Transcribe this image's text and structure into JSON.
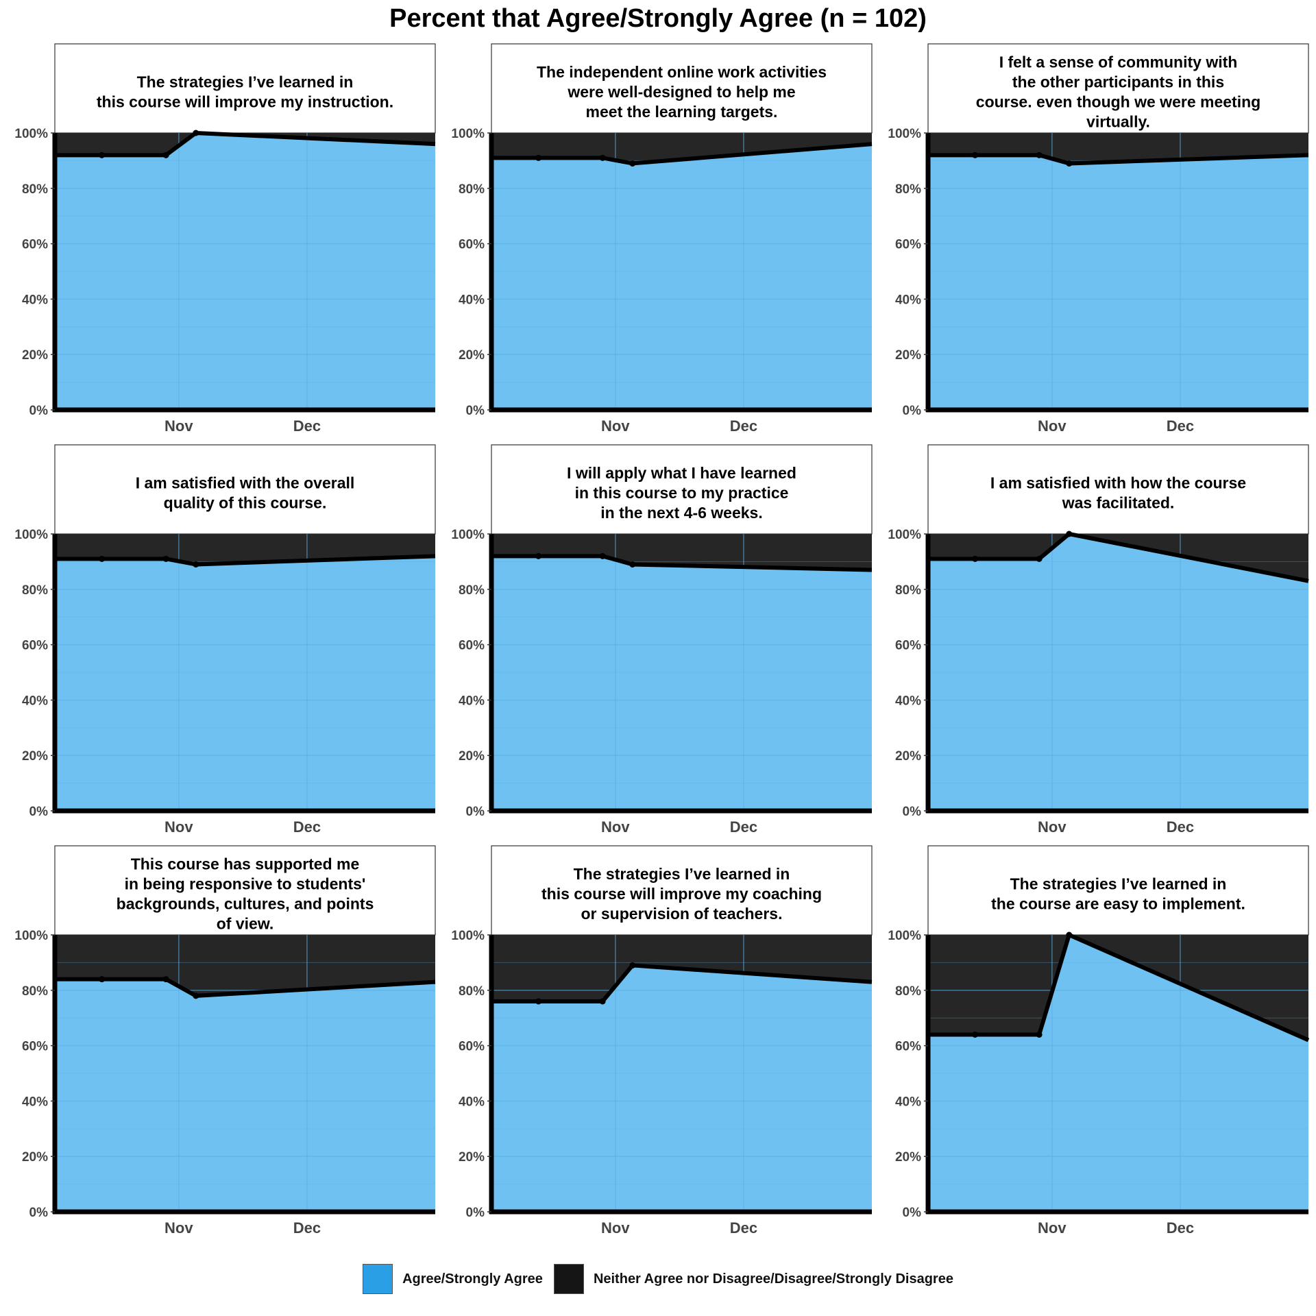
{
  "title": "Percent that Agree/Strongly Agree (n = 102)",
  "colors": {
    "agree": "#6fc1f2",
    "disagree": "#262626",
    "line": "#000000",
    "grid": "#5aaee6"
  },
  "legend": [
    {
      "label": "Agree/Strongly Agree",
      "color": "#2b9fe6"
    },
    {
      "label": "Neither Agree nor Disagree/Disagree/Strongly Disagree",
      "color": "#151515"
    }
  ],
  "chart_data": [
    {
      "type": "area",
      "title": "The strategies I’ve learned in\nthis course will improve my instruction.",
      "x": [
        "2020-10-14",
        "2020-10-29",
        "2020-11-05",
        "2020-12-31"
      ],
      "series": [
        {
          "name": "Agree/Strongly Agree",
          "values": [
            92,
            92,
            100,
            96
          ]
        }
      ],
      "xticks": [
        "Nov",
        "Dec"
      ],
      "yticks": [
        "0%",
        "20%",
        "40%",
        "60%",
        "80%",
        "100%"
      ],
      "ylim": [
        0,
        100
      ]
    },
    {
      "type": "area",
      "title": "The independent online work activities\nwere well-designed to help me\nmeet the learning targets.",
      "x": [
        "2020-10-14",
        "2020-10-29",
        "2020-11-05",
        "2020-12-31"
      ],
      "series": [
        {
          "name": "Agree/Strongly Agree",
          "values": [
            91,
            91,
            89,
            96
          ]
        }
      ],
      "xticks": [
        "Nov",
        "Dec"
      ],
      "yticks": [
        "0%",
        "20%",
        "40%",
        "60%",
        "80%",
        "100%"
      ],
      "ylim": [
        0,
        100
      ]
    },
    {
      "type": "area",
      "title": "I felt a sense of community with\nthe other participants in this\ncourse. even though we were meeting\nvirtually.",
      "x": [
        "2020-10-14",
        "2020-10-29",
        "2020-11-05",
        "2020-12-31"
      ],
      "series": [
        {
          "name": "Agree/Strongly Agree",
          "values": [
            92,
            92,
            89,
            92
          ]
        }
      ],
      "xticks": [
        "Nov",
        "Dec"
      ],
      "yticks": [
        "0%",
        "20%",
        "40%",
        "60%",
        "80%",
        "100%"
      ],
      "ylim": [
        0,
        100
      ]
    },
    {
      "type": "area",
      "title": "I am satisfied with the overall\nquality of this course.",
      "x": [
        "2020-10-14",
        "2020-10-29",
        "2020-11-05",
        "2020-12-31"
      ],
      "series": [
        {
          "name": "Agree/Strongly Agree",
          "values": [
            91,
            91,
            89,
            92
          ]
        }
      ],
      "xticks": [
        "Nov",
        "Dec"
      ],
      "yticks": [
        "0%",
        "20%",
        "40%",
        "60%",
        "80%",
        "100%"
      ],
      "ylim": [
        0,
        100
      ]
    },
    {
      "type": "area",
      "title": "I will apply what I have learned\nin this course to my practice\nin the next 4-6 weeks.",
      "x": [
        "2020-10-14",
        "2020-10-29",
        "2020-11-05",
        "2020-12-31"
      ],
      "series": [
        {
          "name": "Agree/Strongly Agree",
          "values": [
            92,
            92,
            89,
            87
          ]
        }
      ],
      "xticks": [
        "Nov",
        "Dec"
      ],
      "yticks": [
        "0%",
        "20%",
        "40%",
        "60%",
        "80%",
        "100%"
      ],
      "ylim": [
        0,
        100
      ]
    },
    {
      "type": "area",
      "title": "I am satisfied with how the course\nwas facilitated.",
      "x": [
        "2020-10-14",
        "2020-10-29",
        "2020-11-05",
        "2020-12-31"
      ],
      "series": [
        {
          "name": "Agree/Strongly Agree",
          "values": [
            91,
            91,
            100,
            83
          ]
        }
      ],
      "xticks": [
        "Nov",
        "Dec"
      ],
      "yticks": [
        "0%",
        "20%",
        "40%",
        "60%",
        "80%",
        "100%"
      ],
      "ylim": [
        0,
        100
      ]
    },
    {
      "type": "area",
      "title": "This course has supported me\nin being responsive to students'\nbackgrounds, cultures, and points\nof view.",
      "x": [
        "2020-10-14",
        "2020-10-29",
        "2020-11-05",
        "2020-12-31"
      ],
      "series": [
        {
          "name": "Agree/Strongly Agree",
          "values": [
            84,
            84,
            78,
            83
          ]
        }
      ],
      "xticks": [
        "Nov",
        "Dec"
      ],
      "yticks": [
        "0%",
        "20%",
        "40%",
        "60%",
        "80%",
        "100%"
      ],
      "ylim": [
        0,
        100
      ]
    },
    {
      "type": "area",
      "title": "The strategies I’ve learned in\nthis course will improve my coaching\nor supervision of teachers.",
      "x": [
        "2020-10-14",
        "2020-10-29",
        "2020-11-05",
        "2020-12-31"
      ],
      "series": [
        {
          "name": "Agree/Strongly Agree",
          "values": [
            76,
            76,
            89,
            83
          ]
        }
      ],
      "xticks": [
        "Nov",
        "Dec"
      ],
      "yticks": [
        "0%",
        "20%",
        "40%",
        "60%",
        "80%",
        "100%"
      ],
      "ylim": [
        0,
        100
      ]
    },
    {
      "type": "area",
      "title": "The strategies I’ve learned in\nthe course are easy to implement.",
      "x": [
        "2020-10-14",
        "2020-10-29",
        "2020-11-05",
        "2020-12-31"
      ],
      "series": [
        {
          "name": "Agree/Strongly Agree",
          "values": [
            64,
            64,
            100,
            62
          ]
        }
      ],
      "xticks": [
        "Nov",
        "Dec"
      ],
      "yticks": [
        "0%",
        "20%",
        "40%",
        "60%",
        "80%",
        "100%"
      ],
      "ylim": [
        0,
        100
      ]
    }
  ]
}
